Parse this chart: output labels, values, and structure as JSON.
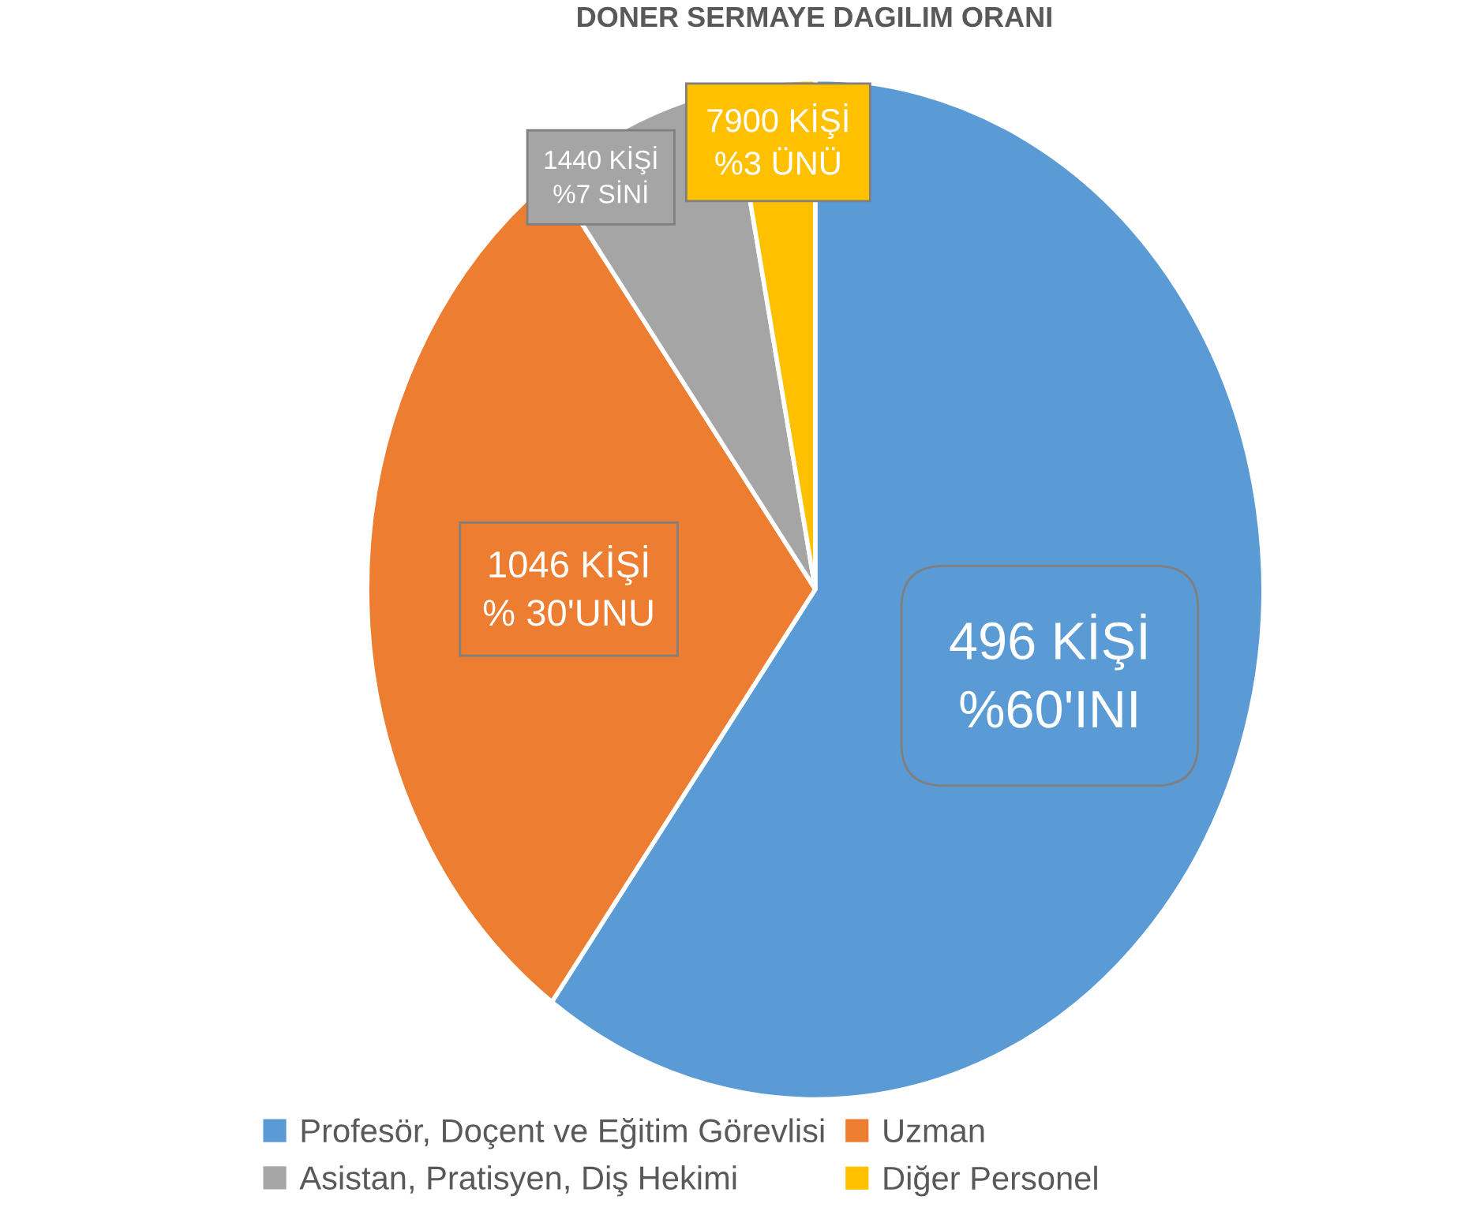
{
  "chart_data": {
    "type": "pie",
    "title": "DONER SERMAYE DAGILIM ORANI",
    "categories": [
      "Profesör, Doçent ve Eğitim Görevlisi",
      "Uzman",
      "Asistan, Pratisyen, Diş Hekimi",
      "Diğer Personel"
    ],
    "values": [
      60,
      30,
      7,
      3
    ],
    "colors": [
      "#5b9bd5",
      "#ed7d31",
      "#a5a5a5",
      "#ffc000"
    ],
    "value_labels": [
      "496 KİŞİ\n%60'INI",
      "1046 KİŞİ\n% 30'UNU",
      "1440 KİŞİ\n%7 SİNİ",
      "7900 KİŞİ\n%3 ÜNÜ"
    ],
    "legend": "bottom"
  }
}
